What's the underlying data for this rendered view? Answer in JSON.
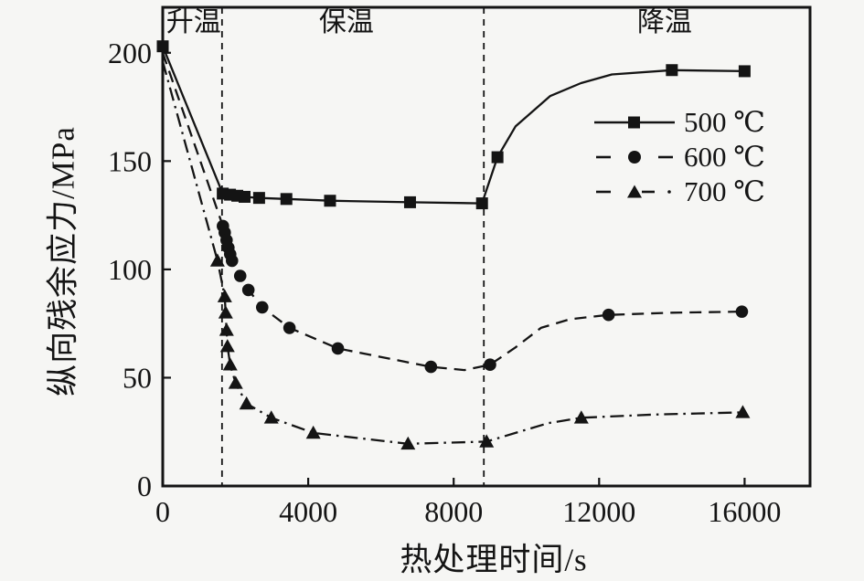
{
  "figure": {
    "background": "#f6f6f4",
    "ink": "#141414"
  },
  "chart_data": {
    "type": "line",
    "title": "",
    "xlabel": "热处理时间/s",
    "ylabel": "纵向残余应力/MPa",
    "xlim": [
      0,
      17800
    ],
    "ylim": [
      0,
      221
    ],
    "x_ticks": [
      0,
      4000,
      8000,
      12000,
      16000
    ],
    "y_ticks": [
      0,
      50,
      100,
      150,
      200
    ],
    "grid": false,
    "phase_lines_t": [
      1630,
      8830
    ],
    "phase_labels": [
      {
        "label": "升温",
        "t": 850
      },
      {
        "label": "保温",
        "t": 5050
      },
      {
        "label": "降温",
        "t": 13800
      }
    ],
    "legend": {
      "position": "upper right"
    },
    "series": [
      {
        "name": "500 ℃",
        "line": "solid",
        "marker": "square",
        "points": [
          [
            0,
            203
          ],
          [
            1650,
            135
          ],
          [
            1850,
            134.5
          ],
          [
            2050,
            134
          ],
          [
            2250,
            133.5
          ],
          [
            2650,
            133
          ],
          [
            3400,
            132.5
          ],
          [
            4600,
            131.7
          ],
          [
            6800,
            131
          ],
          [
            8780,
            130.5
          ],
          [
            9205,
            151.8
          ],
          [
            9700,
            166
          ],
          [
            10650,
            180
          ],
          [
            11500,
            186
          ],
          [
            12350,
            190
          ],
          [
            14000,
            192
          ],
          [
            16000,
            191.5
          ]
        ],
        "marker_at": [
          0,
          1650,
          1850,
          2050,
          2250,
          2650,
          3400,
          4600,
          6800,
          8780,
          9205,
          14000,
          16000
        ]
      },
      {
        "name": "600 ℃",
        "line": "dashed",
        "marker": "circle",
        "points": [
          [
            0,
            200
          ],
          [
            1655,
            120
          ],
          [
            1705,
            117
          ],
          [
            1755,
            113.5
          ],
          [
            1805,
            110
          ],
          [
            1855,
            107
          ],
          [
            1905,
            104
          ],
          [
            2130,
            97
          ],
          [
            2355,
            90.5
          ],
          [
            2735,
            82.5
          ],
          [
            3485,
            73
          ],
          [
            4815,
            63.5
          ],
          [
            7375,
            55
          ],
          [
            8300,
            53.5
          ],
          [
            9000,
            56
          ],
          [
            9700,
            64
          ],
          [
            10400,
            73
          ],
          [
            11200,
            77
          ],
          [
            12260,
            79
          ],
          [
            14000,
            80
          ],
          [
            15925,
            80.5
          ]
        ],
        "marker_at": [
          1655,
          1705,
          1755,
          1805,
          1855,
          1905,
          2130,
          2355,
          2735,
          3485,
          4815,
          7375,
          9000,
          12260,
          15925
        ]
      },
      {
        "name": "700 ℃",
        "line": "dashdot",
        "marker": "triangle",
        "points": [
          [
            0,
            196
          ],
          [
            1505,
            104
          ],
          [
            1705,
            87.5
          ],
          [
            1730,
            80
          ],
          [
            1755,
            72
          ],
          [
            1780,
            64.5
          ],
          [
            1855,
            56
          ],
          [
            2005,
            47.5
          ],
          [
            2305,
            38
          ],
          [
            2985,
            31.5
          ],
          [
            4140,
            24.5
          ],
          [
            6745,
            19.5
          ],
          [
            8905,
            20.5
          ],
          [
            9700,
            24.5
          ],
          [
            10600,
            29
          ],
          [
            11510,
            31.5
          ],
          [
            13500,
            33
          ],
          [
            15950,
            34
          ]
        ],
        "marker_at": [
          1505,
          1705,
          1730,
          1755,
          1780,
          1855,
          2005,
          2305,
          2985,
          4140,
          6745,
          8905,
          11510,
          15950
        ]
      }
    ]
  }
}
